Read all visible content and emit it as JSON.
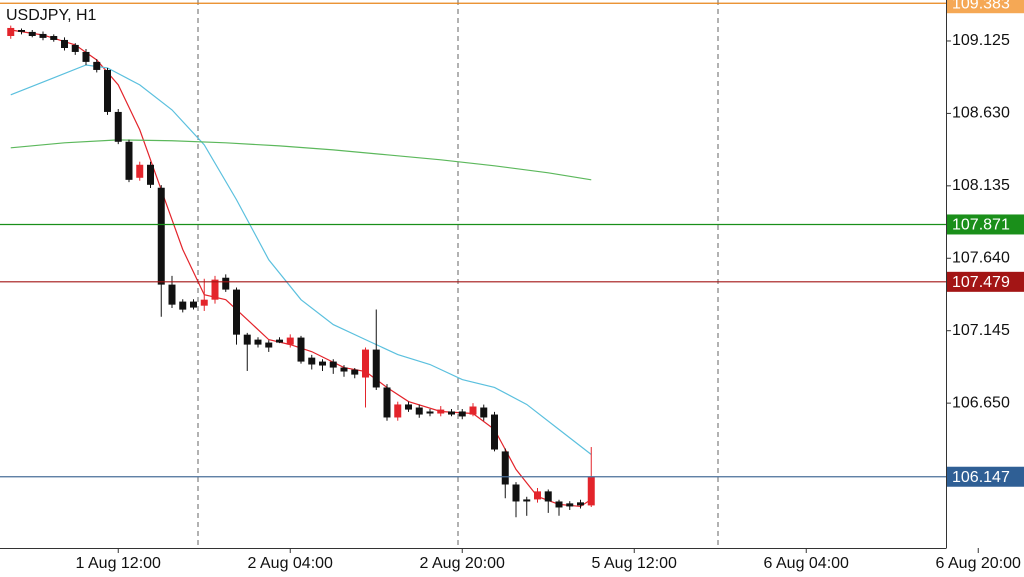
{
  "chart_data": {
    "type": "candlestick",
    "title": "USDJPY, H1",
    "x": [
      0,
      1,
      2,
      3,
      4,
      5,
      6,
      7,
      8,
      9,
      10,
      11,
      12,
      13,
      14,
      15,
      16,
      17,
      18,
      19,
      20,
      21,
      22,
      23,
      24,
      25,
      26,
      27,
      28,
      29,
      30,
      31,
      32,
      33,
      34,
      35,
      36,
      37,
      38,
      39,
      40,
      41,
      42,
      43,
      44,
      45,
      46,
      47,
      48,
      49,
      50,
      51,
      52,
      53,
      54
    ],
    "open": [
      109.159,
      109.2,
      109.187,
      109.173,
      109.159,
      109.132,
      109.098,
      109.05,
      108.982,
      108.927,
      108.64,
      108.436,
      108.19,
      108.279,
      108.122,
      107.46,
      107.344,
      107.344,
      107.316,
      107.357,
      107.507,
      107.426,
      107.118,
      107.084,
      107.064,
      107.084,
      107.05,
      107.098,
      106.961,
      106.934,
      106.934,
      106.893,
      106.879,
      106.825,
      107.016,
      106.757,
      106.552,
      106.641,
      106.62,
      106.593,
      106.579,
      106.593,
      106.593,
      106.572,
      106.62,
      106.572,
      106.32,
      106.094,
      105.992,
      105.992,
      106.047,
      105.978,
      105.965,
      105.972,
      105.951
    ],
    "high": [
      109.23,
      109.21,
      109.2,
      109.19,
      109.17,
      109.15,
      109.11,
      109.07,
      109.0,
      108.94,
      108.66,
      108.45,
      108.3,
      108.3,
      108.14,
      107.52,
      107.36,
      107.36,
      107.5,
      107.52,
      107.53,
      107.44,
      107.13,
      107.1,
      107.08,
      107.1,
      107.12,
      107.11,
      106.98,
      106.95,
      106.95,
      106.91,
      106.89,
      107.03,
      107.29,
      106.78,
      106.66,
      106.66,
      106.64,
      106.61,
      106.63,
      106.61,
      106.61,
      106.65,
      106.64,
      106.59,
      106.34,
      106.11,
      106.01,
      106.07,
      106.06,
      105.99,
      105.98,
      105.99,
      106.35
    ],
    "low": [
      109.14,
      109.17,
      109.15,
      109.13,
      109.12,
      109.06,
      109.03,
      108.96,
      108.91,
      108.62,
      108.42,
      108.16,
      108.17,
      108.12,
      107.24,
      107.3,
      107.27,
      107.29,
      107.28,
      107.33,
      107.41,
      107.05,
      106.87,
      107.03,
      107.0,
      107.06,
      107.03,
      106.92,
      106.88,
      106.87,
      106.85,
      106.83,
      106.82,
      106.62,
      106.74,
      106.53,
      106.53,
      106.59,
      106.55,
      106.56,
      106.56,
      106.56,
      106.54,
      106.56,
      106.53,
      106.32,
      106.0,
      105.87,
      105.88,
      105.97,
      105.9,
      105.88,
      105.92,
      105.93,
      105.94
    ],
    "close": [
      109.214,
      109.187,
      109.159,
      109.146,
      109.132,
      109.077,
      109.05,
      108.982,
      108.927,
      108.64,
      108.436,
      108.176,
      108.279,
      108.142,
      107.46,
      107.323,
      107.289,
      107.303,
      107.357,
      107.494,
      107.426,
      107.118,
      107.05,
      107.05,
      107.03,
      107.064,
      107.098,
      106.934,
      106.914,
      106.907,
      106.893,
      106.866,
      106.845,
      107.016,
      106.757,
      106.552,
      106.641,
      106.606,
      106.572,
      106.579,
      106.606,
      106.572,
      106.559,
      106.627,
      106.552,
      106.333,
      106.094,
      105.978,
      105.978,
      106.047,
      105.978,
      105.937,
      105.944,
      105.951,
      106.147
    ],
    "up_color": "#e3242b",
    "down_color": "#111111",
    "lines": [
      {
        "color": "#e3242b",
        "x": [
          0,
          3,
          6,
          8,
          10,
          12,
          14,
          16,
          18,
          20,
          22,
          24,
          26,
          28,
          31,
          33,
          35,
          37,
          40,
          43,
          45,
          47,
          49,
          51,
          53,
          54
        ],
        "values": [
          109.2,
          109.166,
          109.098,
          108.995,
          108.825,
          108.518,
          108.108,
          107.7,
          107.391,
          107.357,
          107.221,
          107.084,
          107.05,
          107.002,
          106.893,
          106.866,
          106.757,
          106.661,
          106.593,
          106.579,
          106.47,
          106.197,
          106.012,
          105.958,
          105.944,
          105.992
        ]
      },
      {
        "color": "#5bc0de",
        "x": [
          0,
          4,
          7,
          9,
          12,
          15,
          18,
          21,
          24,
          27,
          30,
          33,
          36,
          39,
          42,
          45,
          48,
          51,
          54
        ],
        "values": [
          108.757,
          108.873,
          108.961,
          108.941,
          108.825,
          108.654,
          108.415,
          108.04,
          107.63,
          107.357,
          107.187,
          107.084,
          106.982,
          106.914,
          106.811,
          106.757,
          106.641,
          106.47,
          106.299
        ]
      },
      {
        "color": "#5cb85c",
        "x": [
          0,
          5,
          10,
          15,
          20,
          25,
          30,
          35,
          40,
          45,
          50,
          54
        ],
        "values": [
          108.395,
          108.429,
          108.449,
          108.443,
          108.429,
          108.408,
          108.381,
          108.347,
          108.313,
          108.272,
          108.224,
          108.176
        ]
      }
    ],
    "levels": [
      {
        "value": 109.383,
        "color": "#e8841a",
        "label_color": "#f5a855"
      },
      {
        "value": 107.871,
        "color": "#1a8f1a",
        "label_color": "#1a8f1a"
      },
      {
        "value": 107.479,
        "color": "#a31515",
        "label_color": "#a31515"
      },
      {
        "value": 106.147,
        "color": "#4a6f9a",
        "label_color": "#2f5f95"
      }
    ],
    "xlim": [
      -1,
      87
    ],
    "ylim": [
      105.66,
      109.405
    ],
    "yticks": [
      109.125,
      {
        "value": 108.63,
        "label": "108.630"
      },
      108.135,
      {
        "value": 107.64,
        "label": "107.640"
      },
      107.145,
      {
        "value": 106.65,
        "label": "106.650"
      }
    ],
    "xticks": [
      {
        "value": 10,
        "label": "1 Aug 12:00"
      },
      {
        "value": 26,
        "label": "2 Aug 04:00"
      },
      {
        "value": 42,
        "label": "2 Aug 20:00"
      },
      {
        "value": 58,
        "label": "5 Aug 12:00"
      },
      {
        "value": 74,
        "label": "6 Aug 04:00"
      },
      {
        "value": 90,
        "label": "6 Aug 20:00"
      }
    ]
  }
}
